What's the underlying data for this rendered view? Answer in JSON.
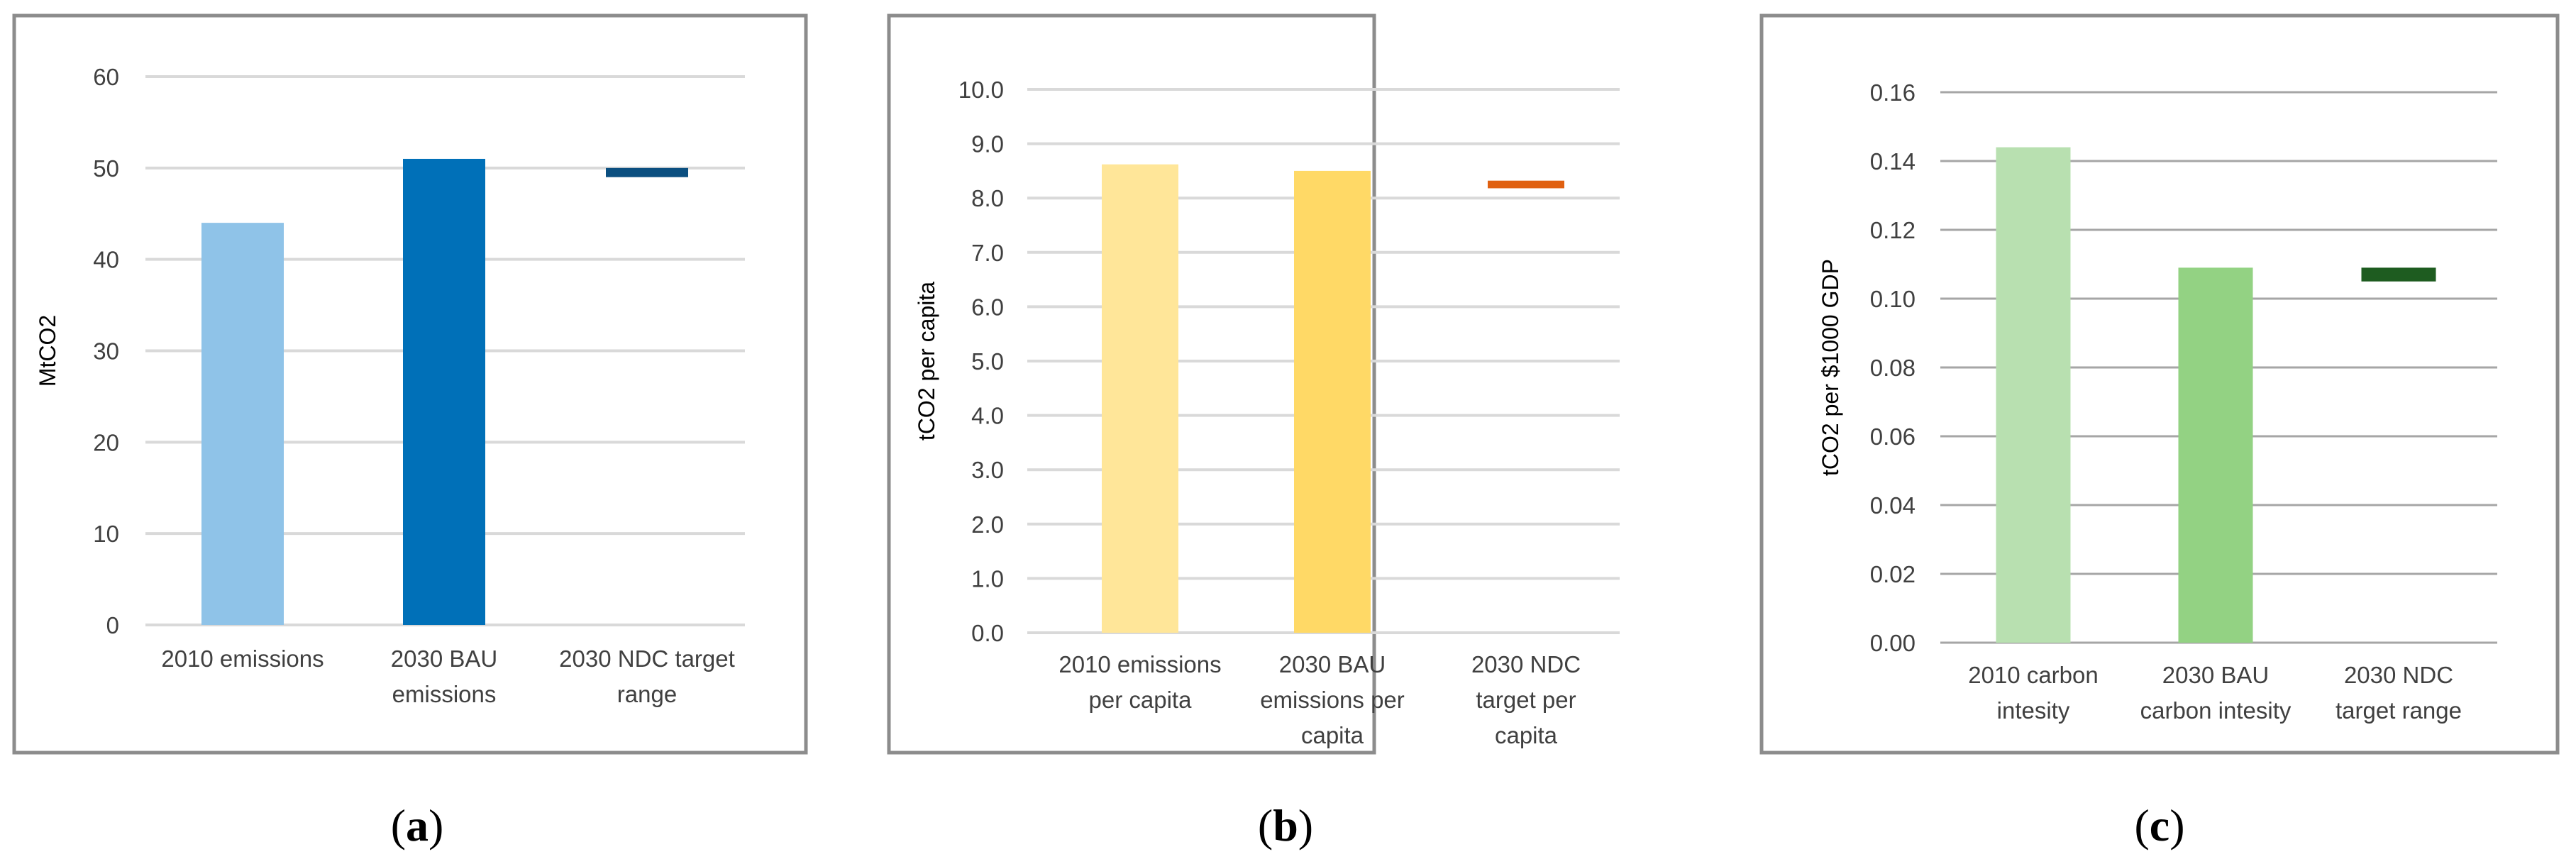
{
  "chart_data": [
    {
      "type": "bar",
      "panel_label": "a",
      "ylabel": "MtCO2",
      "ylim": [
        0,
        60
      ],
      "yticks": [
        "0",
        "10",
        "20",
        "30",
        "40",
        "50",
        "60"
      ],
      "categories": [
        [
          "2010 emissions"
        ],
        [
          "2030 BAU",
          "emissions"
        ],
        [
          "2030 NDC target",
          "range"
        ]
      ],
      "values": [
        44,
        51,
        null
      ],
      "target_range": {
        "category_index": 2,
        "low": 49,
        "high": 50
      },
      "colors": [
        "#8fc3e8",
        "#0070b8",
        "#0b4f80"
      ],
      "gridlines": true
    },
    {
      "type": "bar",
      "panel_label": "b",
      "ylabel": "tCO2 per capita",
      "ylim": [
        0,
        10
      ],
      "yticks": [
        "0.0",
        "1.0",
        "2.0",
        "3.0",
        "4.0",
        "5.0",
        "6.0",
        "7.0",
        "8.0",
        "9.0",
        "10.0"
      ],
      "categories": [
        [
          "2010 emissions",
          "per capita"
        ],
        [
          "2030 BAU",
          "emissions per",
          "capita"
        ],
        [
          "2030 NDC",
          "target per",
          "capita"
        ]
      ],
      "values": [
        8.62,
        8.5,
        null
      ],
      "target_range": {
        "category_index": 2,
        "low": 8.18,
        "high": 8.32
      },
      "colors": [
        "#ffe699",
        "#ffd966",
        "#e06010"
      ],
      "gridlines": true
    },
    {
      "type": "bar",
      "panel_label": "c",
      "ylabel": "tCO2 per $1000 GDP",
      "ylim": [
        0,
        0.16
      ],
      "yticks": [
        "0.00",
        "0.02",
        "0.04",
        "0.06",
        "0.08",
        "0.10",
        "0.12",
        "0.14",
        "0.16"
      ],
      "categories": [
        [
          "2010 carbon",
          "intesity"
        ],
        [
          "2030 BAU",
          "carbon intesity"
        ],
        [
          "2030 NDC",
          "target range"
        ]
      ],
      "values": [
        0.144,
        0.109,
        null
      ],
      "target_range": {
        "category_index": 2,
        "low": 0.105,
        "high": 0.109
      },
      "colors": [
        "#b8e0b0",
        "#93d283",
        "#1e5c20"
      ],
      "gridlines": true
    }
  ]
}
